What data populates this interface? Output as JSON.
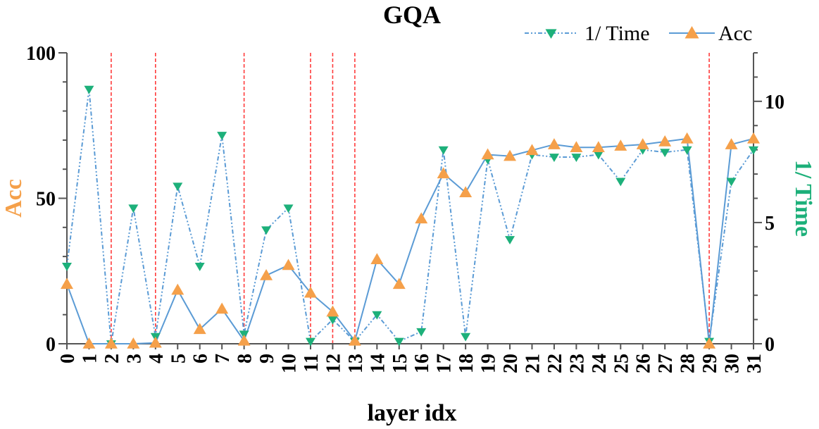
{
  "chart_data": {
    "type": "line",
    "title": "GQA",
    "xlabel": "layer idx",
    "ylabel_left": "Acc",
    "ylabel_right": "1/ Time",
    "x": [
      0,
      1,
      2,
      3,
      4,
      5,
      6,
      7,
      8,
      9,
      10,
      11,
      12,
      13,
      14,
      15,
      16,
      17,
      18,
      19,
      20,
      21,
      22,
      23,
      24,
      25,
      26,
      27,
      28,
      29,
      30,
      31
    ],
    "x_tick_labels": [
      "0",
      "1",
      "2",
      "3",
      "4",
      "5",
      "6",
      "7",
      "8",
      "9",
      "10",
      "11",
      "12",
      "13",
      "14",
      "15",
      "16",
      "17",
      "18",
      "19",
      "20",
      "21",
      "22",
      "23",
      "24",
      "25",
      "26",
      "27",
      "28",
      "29",
      "30",
      "31"
    ],
    "y_left_lim": [
      0,
      100
    ],
    "y_left_ticks": [
      "0",
      "50",
      "100"
    ],
    "y_right_lim": [
      0,
      12
    ],
    "y_right_ticks": [
      "0",
      "5",
      "10"
    ],
    "series": [
      {
        "name": "1/ Time",
        "axis": "right",
        "style": "dash-dot-dot",
        "marker": "triangle-down",
        "color": "#5B9BD5",
        "marker_color": "#1DB07A",
        "values": [
          3.2,
          10.5,
          0.0,
          5.6,
          0.3,
          6.5,
          3.2,
          8.6,
          0.4,
          4.7,
          5.6,
          0.1,
          1.0,
          0.1,
          1.2,
          0.1,
          0.5,
          8.0,
          0.3,
          7.6,
          4.3,
          7.8,
          7.7,
          7.7,
          7.8,
          6.7,
          8.0,
          7.9,
          8.0,
          0.1,
          6.7,
          8.0
        ]
      },
      {
        "name": "Acc",
        "axis": "left",
        "style": "solid",
        "marker": "triangle-up",
        "color": "#5B9BD5",
        "marker_color": "#F5A04A",
        "values": [
          20.5,
          0,
          0,
          0,
          0.3,
          18.5,
          5,
          12,
          1,
          23.5,
          27,
          17.5,
          11,
          1,
          29,
          20.5,
          43,
          58.5,
          52,
          65,
          64.5,
          66.5,
          68.5,
          67.5,
          67.5,
          68,
          68.5,
          69.5,
          70.5,
          0,
          68.5,
          70.5
        ]
      }
    ],
    "vertical_markers": [
      2,
      4,
      8,
      11,
      12,
      13,
      29
    ],
    "vertical_marker_color": "#FF3B3B",
    "acc_label_color": "#F5A04A",
    "time_label_color": "#1DB07A",
    "legend": {
      "placement": "top-right",
      "entries": [
        "1/ Time",
        "Acc"
      ]
    }
  }
}
